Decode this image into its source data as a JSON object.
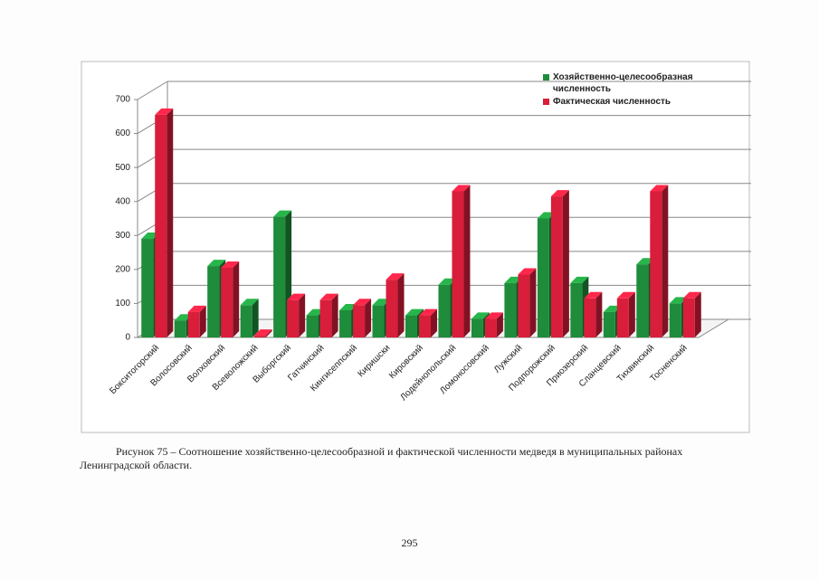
{
  "chart_data": {
    "type": "bar3d",
    "categories": [
      "Бокситогорский",
      "Волосовский",
      "Волховский",
      "Всеволожский",
      "Выборгский",
      "Гатчинский",
      "Кингисеппский",
      "Киришски",
      "Кировский",
      "Лодейнопольский",
      "Ломоносовский",
      "Лужский",
      "Подпорожский",
      "Приозерский",
      "Сланцевский",
      "Тихвинский",
      "Тосненский"
    ],
    "series": [
      {
        "name": "Хозяйственно-целесообразная численность",
        "color": "#1e8c3a",
        "values": [
          290,
          50,
          210,
          95,
          355,
          65,
          80,
          95,
          65,
          155,
          55,
          160,
          350,
          160,
          75,
          215,
          100
        ]
      },
      {
        "name": "Фактическая численность",
        "color": "#d81e3a",
        "values": [
          655,
          75,
          205,
          5,
          110,
          110,
          95,
          170,
          65,
          430,
          55,
          185,
          415,
          115,
          115,
          430,
          115
        ]
      }
    ],
    "ylim": [
      0,
      700
    ],
    "yticks": [
      0,
      100,
      200,
      300,
      400,
      500,
      600,
      700
    ],
    "grid": true,
    "legend": "top-right"
  },
  "caption": "Рисунок 75 – Соотношение хозяйственно-целесообразной  и фактической численности медведя в муниципальных районах Ленинградской области.",
  "page_number": "295"
}
